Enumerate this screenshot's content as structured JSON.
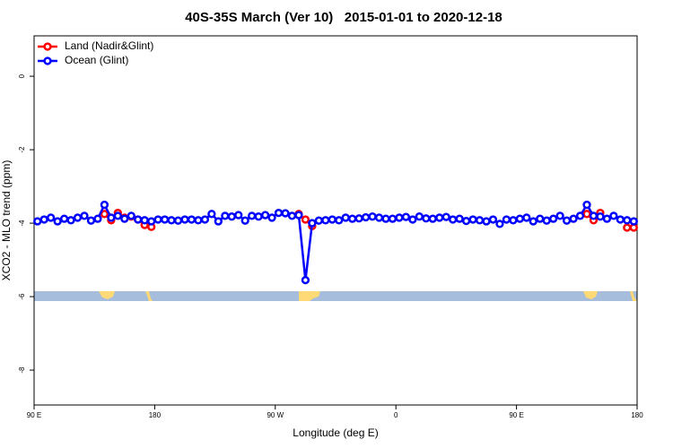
{
  "chart_data": {
    "type": "line",
    "title": "40S-35S March (Ver 10)   2015-01-01 to 2020-12-18",
    "x_label": "Longitude (deg E)",
    "y_label": "XCO2 - MLO trend (ppm)",
    "xlim": [
      90,
      540
    ],
    "ylim": [
      -8.95,
      1.1
    ],
    "xticks": [
      {
        "value": 90,
        "label": "90 E"
      },
      180,
      {
        "value": 270,
        "label": "90 W"
      },
      {
        "value": 360,
        "label": "0"
      },
      {
        "value": 450,
        "label": "90 E"
      },
      {
        "value": 540,
        "label": "180"
      }
    ],
    "yticks": [
      0,
      -2,
      -4,
      -6,
      -8
    ],
    "legend": "top-left",
    "x": [
      92.5,
      97.5,
      102.5,
      107.5,
      112.5,
      117.5,
      122.5,
      127.5,
      132.5,
      137.5,
      142.5,
      147.5,
      152.5,
      157.5,
      162.5,
      167.5,
      172.5,
      177.5,
      182.5,
      187.5,
      192.5,
      197.5,
      202.5,
      207.5,
      212.5,
      217.5,
      222.5,
      227.5,
      232.5,
      237.5,
      242.5,
      247.5,
      252.5,
      257.5,
      262.5,
      267.5,
      272.5,
      277.5,
      282.5,
      287.5,
      292.5,
      297.5,
      302.5,
      307.5,
      312.5,
      317.5,
      322.5,
      327.5,
      332.5,
      337.5,
      342.5,
      347.5,
      352.5,
      357.5,
      362.5,
      367.5,
      372.5,
      377.5,
      382.5,
      387.5,
      392.5,
      397.5,
      402.5,
      407.5,
      412.5,
      417.5,
      422.5,
      427.5,
      432.5,
      437.5,
      442.5,
      447.5,
      452.5,
      457.5,
      462.5,
      467.5,
      472.5,
      477.5,
      482.5,
      487.5,
      492.5,
      497.5,
      502.5,
      507.5,
      512.5,
      517.5,
      522.5,
      527.5,
      532.5,
      537.5
    ],
    "series": [
      {
        "name": "Land (Nadir&Glint)",
        "color": "#ff0000",
        "values": [
          null,
          null,
          null,
          null,
          null,
          null,
          null,
          null,
          null,
          null,
          -3.75,
          -3.92,
          -3.72,
          -3.85,
          -3.82,
          -3.9,
          -4.05,
          -4.1,
          null,
          null,
          null,
          null,
          null,
          null,
          null,
          null,
          null,
          null,
          null,
          null,
          null,
          null,
          null,
          null,
          null,
          null,
          null,
          null,
          null,
          -3.75,
          -3.9,
          -4.08,
          null,
          null,
          null,
          null,
          null,
          null,
          null,
          null,
          null,
          null,
          null,
          null,
          null,
          null,
          null,
          null,
          null,
          null,
          null,
          null,
          null,
          null,
          null,
          null,
          null,
          null,
          null,
          null,
          null,
          null,
          null,
          null,
          null,
          null,
          null,
          null,
          null,
          null,
          null,
          null,
          -3.75,
          -3.92,
          -3.72,
          null,
          null,
          null,
          -4.12,
          -4.12
        ]
      },
      {
        "name": "Ocean (Glint)",
        "color": "#0000ff",
        "values": [
          -3.95,
          -3.9,
          -3.85,
          -3.95,
          -3.88,
          -3.92,
          -3.85,
          -3.8,
          -3.93,
          -3.88,
          -3.5,
          -3.85,
          -3.8,
          -3.88,
          -3.8,
          -3.9,
          -3.92,
          -3.95,
          -3.9,
          -3.9,
          -3.92,
          -3.93,
          -3.9,
          -3.9,
          -3.92,
          -3.9,
          -3.75,
          -3.95,
          -3.8,
          -3.82,
          -3.78,
          -3.93,
          -3.8,
          -3.82,
          -3.78,
          -3.85,
          -3.72,
          -3.73,
          -3.8,
          -3.78,
          -5.55,
          -4.0,
          -3.93,
          -3.92,
          -3.9,
          -3.92,
          -3.85,
          -3.88,
          -3.87,
          -3.84,
          -3.82,
          -3.85,
          -3.88,
          -3.88,
          -3.85,
          -3.83,
          -3.9,
          -3.82,
          -3.87,
          -3.88,
          -3.85,
          -3.83,
          -3.9,
          -3.88,
          -3.94,
          -3.9,
          -3.92,
          -3.95,
          -3.9,
          -4.02,
          -3.9,
          -3.92,
          -3.88,
          -3.85,
          -3.95,
          -3.88,
          -3.93,
          -3.88,
          -3.8,
          -3.93,
          -3.88,
          -3.8,
          -3.5,
          -3.8,
          -3.82,
          -3.88,
          -3.8,
          -3.9,
          -3.92,
          -3.95
        ]
      }
    ]
  }
}
